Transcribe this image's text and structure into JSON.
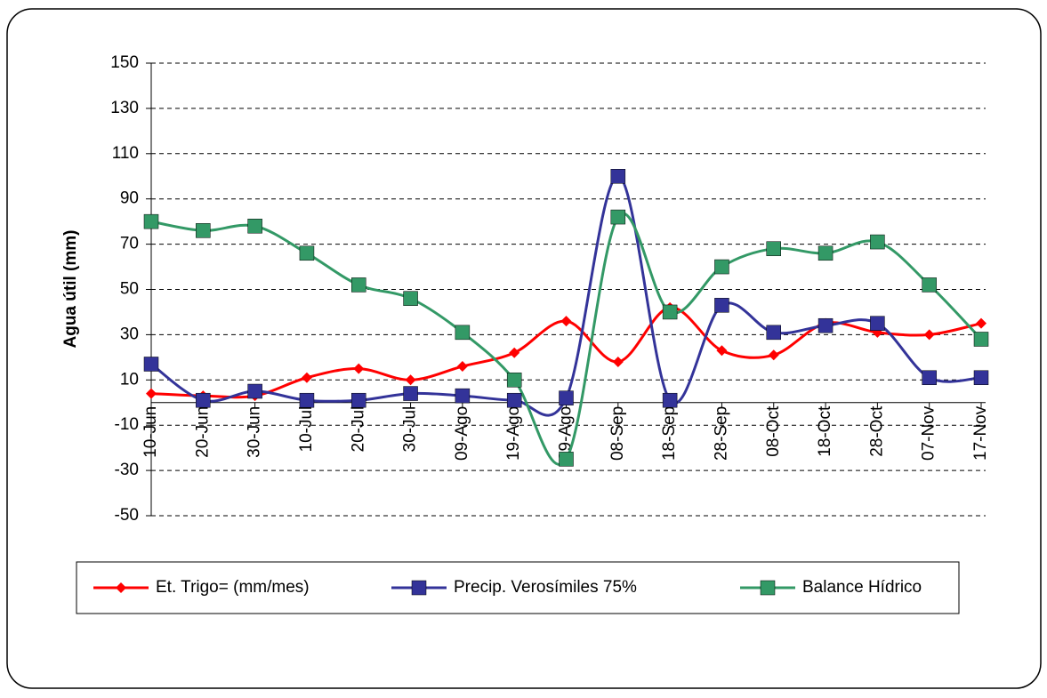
{
  "chart_data": {
    "type": "line",
    "y_label": "Agua útil (mm)",
    "categories": [
      "10-Jun",
      "20-Jun",
      "30-Jun",
      "10-Jul",
      "20-Jul",
      "30-Jul",
      "09-Ago",
      "19-Ago",
      "29-Ago",
      "08-Sep",
      "18-Sep",
      "28-Sep",
      "08-Oct",
      "18-Oct",
      "28-Oct",
      "07-Nov",
      "17-Nov"
    ],
    "series": [
      {
        "name": "Et. Trigo= (mm/mes)",
        "color": "#ff0000",
        "marker": "diamond",
        "values": [
          4,
          3,
          3,
          11,
          15,
          10,
          16,
          22,
          36,
          18,
          42,
          23,
          21,
          35,
          31,
          30,
          35
        ]
      },
      {
        "name": "Precip. Verosímiles 75%",
        "color": "#333399",
        "marker": "square",
        "values": [
          17,
          1,
          5,
          1,
          1,
          4,
          3,
          1,
          2,
          100,
          1,
          43,
          31,
          34,
          35,
          11,
          11
        ]
      },
      {
        "name": "Balance Hídrico",
        "color": "#339966",
        "marker": "square",
        "values": [
          80,
          76,
          78,
          66,
          52,
          46,
          31,
          10,
          -25,
          82,
          40,
          60,
          68,
          66,
          71,
          52,
          28
        ]
      }
    ],
    "ylim": [
      -50,
      150
    ],
    "yticks": [
      -50,
      -30,
      -10,
      10,
      30,
      50,
      70,
      90,
      110,
      130,
      150
    ],
    "grid": true,
    "legend": "bottom"
  }
}
